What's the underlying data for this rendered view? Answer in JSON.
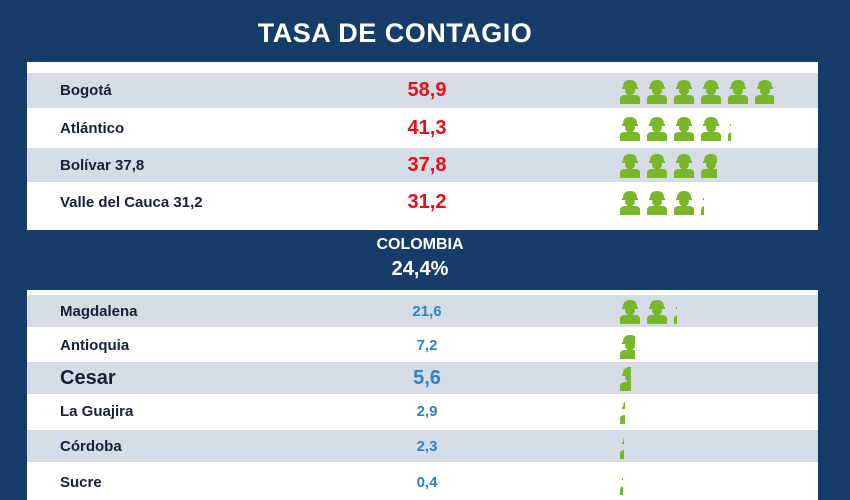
{
  "title": "TASA DE CONTAGIO",
  "national": {
    "label": "COLOMBIA",
    "rate": "24,4%"
  },
  "icon": "person-icon",
  "colors": {
    "background": "#173c69",
    "high_value": "#e5101c",
    "low_value": "#2d82c8",
    "icon": "#7ab62a",
    "row_shade": "#d6dce6"
  },
  "chart_data": {
    "type": "table",
    "title": "TASA DE CONTAGIO",
    "reference": {
      "name": "COLOMBIA",
      "value": 24.4
    },
    "rows_above": [
      {
        "name": "Bogotá",
        "display": "58,9",
        "value": 58.9
      },
      {
        "name": "Atlántico",
        "display": "41,3",
        "value": 41.3
      },
      {
        "name": "Bolívar 37,8",
        "display": "37,8",
        "value": 37.8
      },
      {
        "name": "Valle del Cauca 31,2",
        "display": "31,2",
        "value": 31.2
      }
    ],
    "rows_below": [
      {
        "name": "Magdalena",
        "display": "21,6",
        "value": 21.6
      },
      {
        "name": "Antioquia",
        "display": "7,2",
        "value": 7.2
      },
      {
        "name": "Cesar",
        "display": "5,6",
        "value": 5.6
      },
      {
        "name": "La Guajira",
        "display": "2,9",
        "value": 2.9
      },
      {
        "name": "Córdoba",
        "display": "2,3",
        "value": 2.3
      },
      {
        "name": "Sucre",
        "display": "0,4",
        "value": 0.4
      }
    ]
  }
}
